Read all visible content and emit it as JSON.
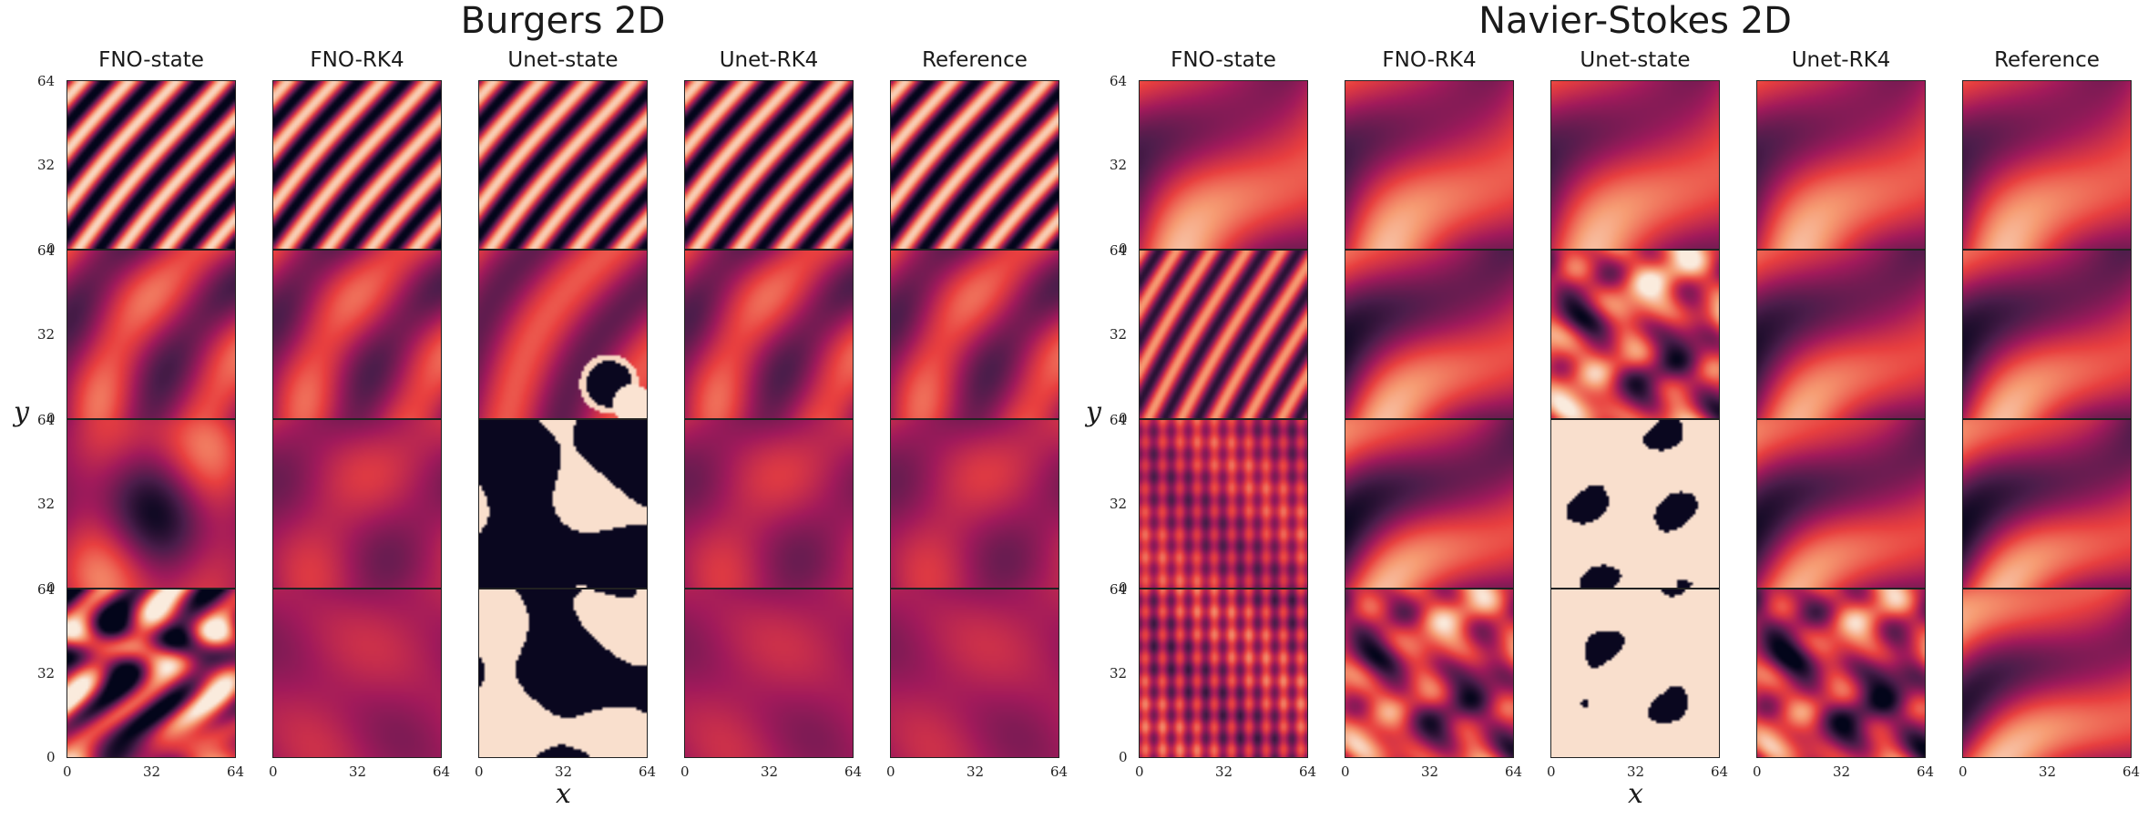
{
  "figure": {
    "groups": [
      {
        "title": "Burgers 2D",
        "columns": [
          "FNO-state",
          "FNO-RK4",
          "Unet-state",
          "Unet-RK4",
          "Reference"
        ]
      },
      {
        "title": "Navier-Stokes 2D",
        "columns": [
          "FNO-state",
          "FNO-RK4",
          "Unet-state",
          "Unet-RK4",
          "Reference"
        ]
      }
    ],
    "xlabel": "x",
    "ylabel": "y",
    "ticks": [
      "0",
      "32",
      "64"
    ],
    "colormap": [
      "#03051a",
      "#4c1d4b",
      "#a11a5b",
      "#e83f3f",
      "#f69c73",
      "#faebdd"
    ]
  },
  "chart_data": {
    "type": "heatmap",
    "description_of_layout": "2 groups x 5 columns x 4 rows of 64x64 field snapshots",
    "xlim": [
      0,
      64
    ],
    "ylim": [
      0,
      64
    ],
    "rows": 4,
    "groups": [
      {
        "title": "Burgers 2D",
        "columns": [
          {
            "name": "FNO-state",
            "rows": [
              {
                "kind": "stripes",
                "freq": 3.0,
                "angle": 40,
                "amp": 0.5,
                "base": 0.45
              },
              {
                "kind": "wave",
                "freq": 1.5,
                "angle": 30,
                "amp": 0.22,
                "base": 0.45
              },
              {
                "kind": "blobs",
                "amp": 0.12,
                "base": 0.4
              },
              {
                "kind": "chaos",
                "amp": 0.5,
                "base": 0.45
              }
            ]
          },
          {
            "name": "FNO-RK4",
            "rows": [
              {
                "kind": "stripes",
                "freq": 3.0,
                "angle": 40,
                "amp": 0.48,
                "base": 0.45
              },
              {
                "kind": "wave",
                "freq": 1.5,
                "angle": 30,
                "amp": 0.2,
                "base": 0.45
              },
              {
                "kind": "wave",
                "freq": 1.2,
                "angle": 35,
                "amp": 0.1,
                "base": 0.42
              },
              {
                "kind": "wave",
                "freq": 1.0,
                "angle": 35,
                "amp": 0.05,
                "base": 0.42
              }
            ]
          },
          {
            "name": "Unet-state",
            "rows": [
              {
                "kind": "stripes",
                "freq": 3.0,
                "angle": 40,
                "amp": 0.48,
                "base": 0.45
              },
              {
                "kind": "wave_blob",
                "freq": 1.5,
                "angle": 30,
                "amp": 0.2,
                "base": 0.45
              },
              {
                "kind": "binary",
                "seed": 3
              },
              {
                "kind": "binary",
                "seed": 7
              }
            ]
          },
          {
            "name": "Unet-RK4",
            "rows": [
              {
                "kind": "stripes",
                "freq": 3.0,
                "angle": 40,
                "amp": 0.48,
                "base": 0.45
              },
              {
                "kind": "wave",
                "freq": 1.5,
                "angle": 30,
                "amp": 0.2,
                "base": 0.45
              },
              {
                "kind": "wave",
                "freq": 1.2,
                "angle": 35,
                "amp": 0.1,
                "base": 0.42
              },
              {
                "kind": "wave",
                "freq": 1.0,
                "angle": 35,
                "amp": 0.05,
                "base": 0.42
              }
            ]
          },
          {
            "name": "Reference",
            "rows": [
              {
                "kind": "stripes",
                "freq": 3.0,
                "angle": 40,
                "amp": 0.48,
                "base": 0.45
              },
              {
                "kind": "wave",
                "freq": 1.5,
                "angle": 30,
                "amp": 0.2,
                "base": 0.45
              },
              {
                "kind": "wave",
                "freq": 1.2,
                "angle": 35,
                "amp": 0.1,
                "base": 0.42
              },
              {
                "kind": "wave",
                "freq": 1.0,
                "angle": 35,
                "amp": 0.05,
                "base": 0.42
              }
            ]
          }
        ]
      },
      {
        "title": "Navier-Stokes 2D",
        "columns": [
          {
            "name": "FNO-state",
            "rows": [
              {
                "kind": "smooth",
                "freq": 1.0,
                "angle": 45,
                "amp": 0.4,
                "base": 0.5
              },
              {
                "kind": "stripes",
                "freq": 3.5,
                "angle": 30,
                "amp": 0.35,
                "base": 0.45
              },
              {
                "kind": "grid",
                "amp": 0.12,
                "base": 0.45
              },
              {
                "kind": "grid",
                "amp": 0.15,
                "base": 0.45
              }
            ]
          },
          {
            "name": "FNO-RK4",
            "rows": [
              {
                "kind": "smooth",
                "freq": 1.0,
                "angle": 45,
                "amp": 0.4,
                "base": 0.5
              },
              {
                "kind": "smooth",
                "freq": 1.1,
                "angle": 50,
                "amp": 0.45,
                "base": 0.45
              },
              {
                "kind": "smooth",
                "freq": 1.2,
                "angle": 55,
                "amp": 0.45,
                "base": 0.45
              },
              {
                "kind": "turb",
                "amp": 0.35,
                "base": 0.5
              }
            ]
          },
          {
            "name": "Unet-state",
            "rows": [
              {
                "kind": "smooth",
                "freq": 1.0,
                "angle": 45,
                "amp": 0.4,
                "base": 0.5
              },
              {
                "kind": "turb",
                "amp": 0.4,
                "base": 0.55
              },
              {
                "kind": "binary_light",
                "seed": 11
              },
              {
                "kind": "binary_light",
                "seed": 17
              }
            ]
          },
          {
            "name": "Unet-RK4",
            "rows": [
              {
                "kind": "smooth",
                "freq": 1.0,
                "angle": 45,
                "amp": 0.4,
                "base": 0.5
              },
              {
                "kind": "smooth",
                "freq": 1.1,
                "angle": 50,
                "amp": 0.42,
                "base": 0.45
              },
              {
                "kind": "smooth",
                "freq": 1.2,
                "angle": 55,
                "amp": 0.42,
                "base": 0.45
              },
              {
                "kind": "turb",
                "amp": 0.38,
                "base": 0.45
              }
            ]
          },
          {
            "name": "Reference",
            "rows": [
              {
                "kind": "smooth",
                "freq": 1.0,
                "angle": 45,
                "amp": 0.4,
                "base": 0.5
              },
              {
                "kind": "smooth",
                "freq": 1.1,
                "angle": 50,
                "amp": 0.45,
                "base": 0.45
              },
              {
                "kind": "smooth",
                "freq": 1.2,
                "angle": 55,
                "amp": 0.45,
                "base": 0.45
              },
              {
                "kind": "smooth",
                "freq": 1.3,
                "angle": 60,
                "amp": 0.42,
                "base": 0.5
              }
            ]
          }
        ]
      }
    ]
  }
}
